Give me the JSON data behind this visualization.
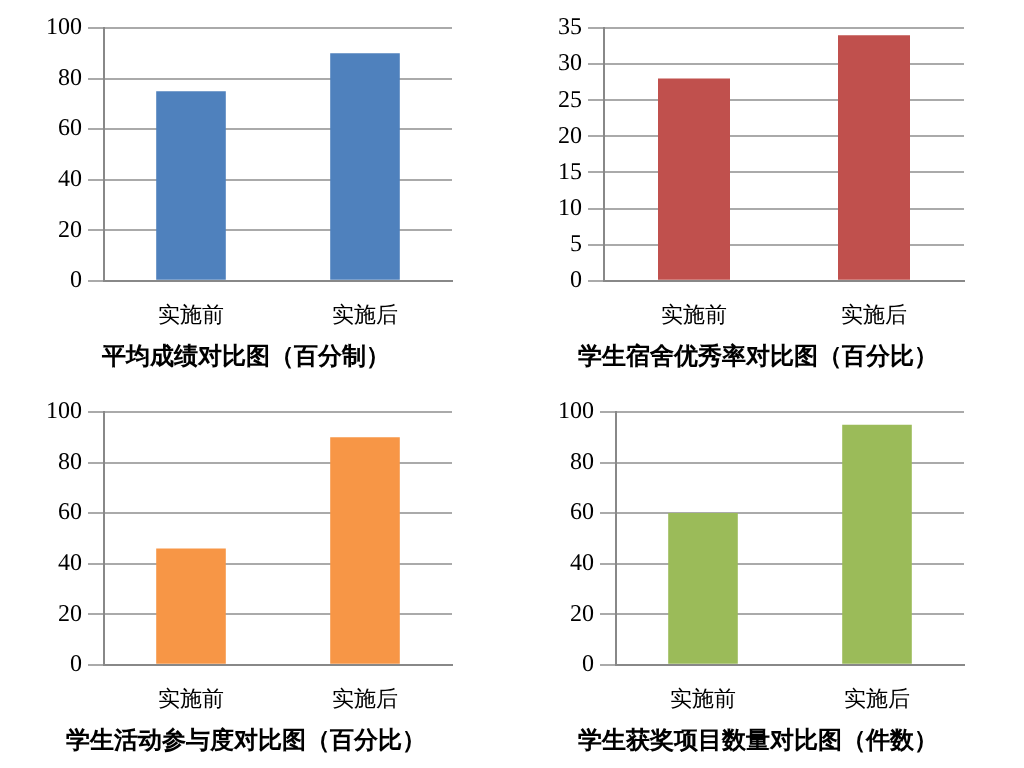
{
  "chart_data": [
    {
      "type": "bar",
      "title": "平均成绩对比图（百分制）",
      "categories": [
        "实施前",
        "实施后"
      ],
      "values": [
        75,
        90
      ],
      "color": "#4f81bd",
      "ylim": [
        0,
        100
      ],
      "yticks": [
        0,
        20,
        40,
        60,
        80,
        100
      ],
      "grid": "y"
    },
    {
      "type": "bar",
      "title": "学生宿舍优秀率对比图（百分比）",
      "categories": [
        "实施前",
        "实施后"
      ],
      "values": [
        28,
        34
      ],
      "color": "#c0504d",
      "ylim": [
        0,
        35
      ],
      "yticks": [
        0,
        5,
        10,
        15,
        20,
        25,
        30,
        35
      ],
      "grid": "y"
    },
    {
      "type": "bar",
      "title": "学生活动参与度对比图（百分比）",
      "categories": [
        "实施前",
        "实施后"
      ],
      "values": [
        46,
        90
      ],
      "color": "#f79646",
      "ylim": [
        0,
        100
      ],
      "yticks": [
        0,
        20,
        40,
        60,
        80,
        100
      ],
      "grid": "y"
    },
    {
      "type": "bar",
      "title": "学生获奖项目数量对比图（件数）",
      "categories": [
        "实施前",
        "实施后"
      ],
      "values": [
        60,
        95
      ],
      "color": "#9bbb59",
      "ylim": [
        0,
        100
      ],
      "yticks": [
        0,
        20,
        40,
        60,
        80,
        100
      ],
      "grid": "y"
    }
  ]
}
